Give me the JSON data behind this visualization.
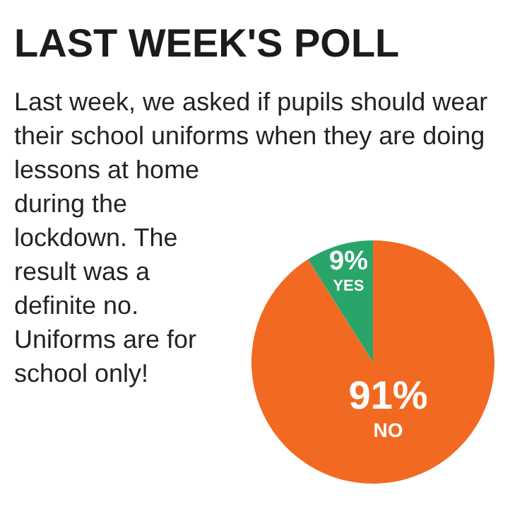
{
  "chart_data": {
    "type": "pie",
    "title": "LAST WEEK'S POLL",
    "annotations": [
      "Last week, we asked if pupils should wear their school uniforms when they are doing lessons at home during the lockdown. The result was a definite no. Uniforms are for school only!"
    ],
    "categories": [
      "NO",
      "YES"
    ],
    "values": [
      91,
      9
    ],
    "colors": [
      "#f26a21",
      "#2aa56a"
    ],
    "value_labels": [
      "91%",
      "9%"
    ]
  }
}
